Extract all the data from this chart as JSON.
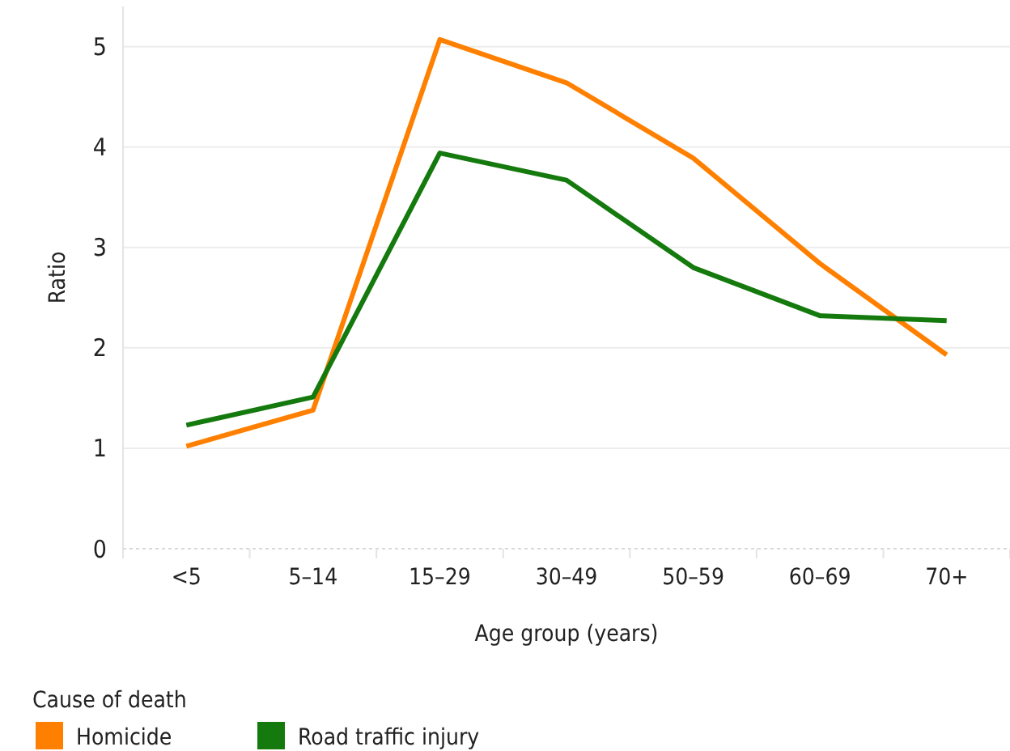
{
  "chart_data": {
    "type": "line",
    "xlabel": "Age group (years)",
    "ylabel": "Ratio",
    "legend_title": "Cause of death",
    "legend": "bottom left",
    "grid": "y",
    "categories": [
      "<5",
      "5–14",
      "15–29",
      "30–49",
      "50–59",
      "60–69",
      "70+"
    ],
    "ylim": [
      0,
      5.4
    ],
    "yticks": [
      0,
      1,
      2,
      3,
      4,
      5
    ],
    "series": [
      {
        "name": "Homicide",
        "color": "#ff8000",
        "values": [
          1.02,
          1.38,
          5.07,
          4.64,
          3.89,
          2.84,
          1.93
        ]
      },
      {
        "name": "Road traffic injury",
        "color": "#157a0e",
        "values": [
          1.23,
          1.51,
          3.94,
          3.67,
          2.8,
          2.32,
          2.27
        ]
      }
    ]
  }
}
